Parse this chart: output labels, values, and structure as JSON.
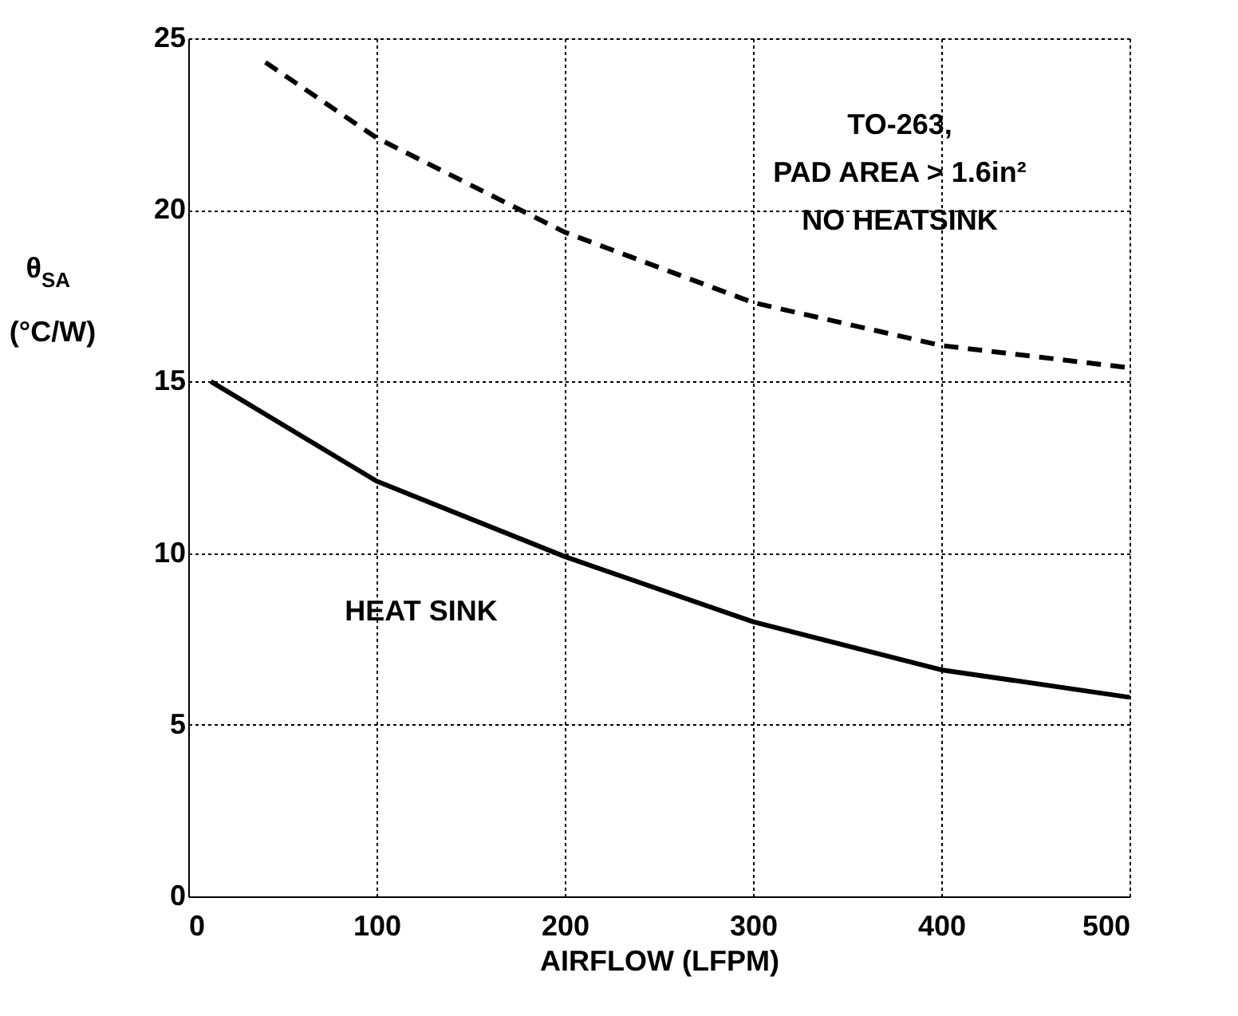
{
  "chart_data": {
    "type": "line",
    "xlabel": "AIRFLOW (LFPM)",
    "ylabel": "θ$_{SA}$ (°C/W)",
    "xlim": [
      0,
      500
    ],
    "xticks": [
      0,
      100,
      200,
      300,
      400,
      500
    ],
    "ylim": [
      0,
      25
    ],
    "yticks": [
      0,
      5,
      10,
      15,
      20,
      25
    ],
    "grid": true,
    "marker": "none",
    "series": [
      {
        "color": "#000000",
        "line_style": "dashed",
        "x": [
          41,
          100,
          200,
          300,
          400,
          500
        ],
        "values": [
          24.3,
          22.1,
          19.35,
          17.3,
          16.05,
          15.4
        ]
      },
      {
        "color": "#000000",
        "line_style": "solid",
        "x": [
          12,
          100,
          200,
          300,
          400,
          500
        ],
        "values": [
          15,
          12.1,
          9.9,
          8.0,
          6.6,
          5.8
        ]
      }
    ],
    "annotations": [
      "TO-263,\nPAD AREA > 1.6in²\nNO HEATSINK",
      "HEAT SINK"
    ]
  }
}
